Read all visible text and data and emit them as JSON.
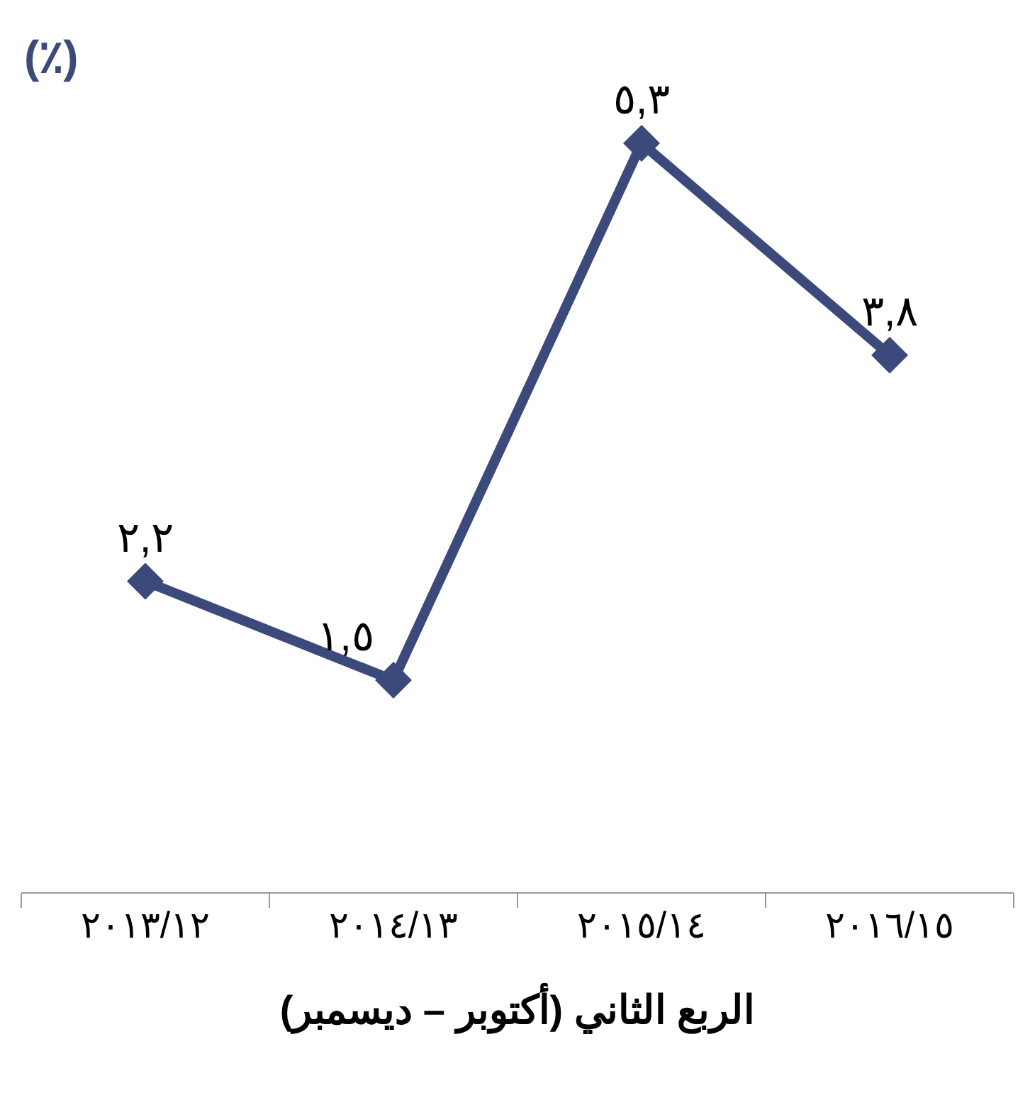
{
  "chart_data": {
    "type": "line",
    "ylabel": "(٪)",
    "xlabel": "الربع الثاني (أكتوبر – ديسمبر)",
    "categories": [
      "٢٠١٣/١٢",
      "٢٠١٤/١٣",
      "٢٠١٥/١٤",
      "٢٠١٦/١٥"
    ],
    "series": [
      {
        "color": "#3b4a7a",
        "values": [
          2.2,
          1.5,
          5.3,
          3.8
        ],
        "value_labels": [
          "٢,٢",
          "١,٥",
          "٥,٣",
          "٣,٨"
        ]
      }
    ],
    "marker": "diamond",
    "line_style": "solid"
  }
}
